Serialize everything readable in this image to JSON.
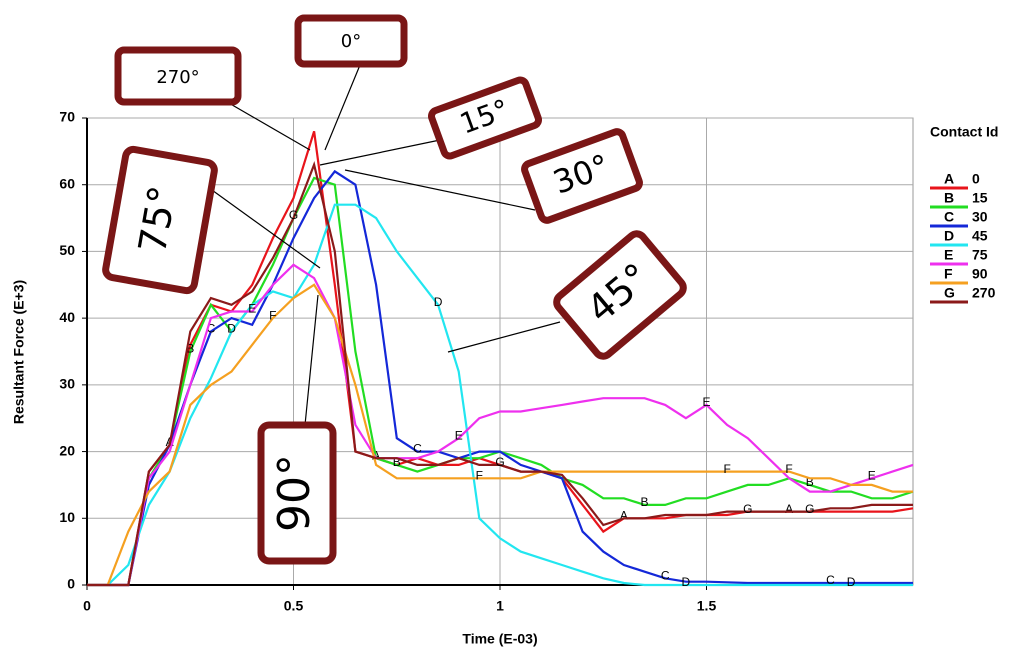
{
  "chart_data": {
    "type": "line",
    "xlabel": "Time (E-03)",
    "ylabel": "Resultant Force (E+3)",
    "legend_title": "Contact Id",
    "xlim": [
      0,
      2
    ],
    "ylim": [
      0,
      70
    ],
    "xticks": [
      0,
      0.5,
      1,
      1.5
    ],
    "yticks": [
      0,
      10,
      20,
      30,
      40,
      50,
      60,
      70
    ],
    "grid": true,
    "x": [
      0,
      0.05,
      0.1,
      0.15,
      0.2,
      0.25,
      0.3,
      0.35,
      0.4,
      0.45,
      0.5,
      0.55,
      0.6,
      0.65,
      0.7,
      0.75,
      0.8,
      0.85,
      0.9,
      0.95,
      1.0,
      1.05,
      1.1,
      1.15,
      1.2,
      1.25,
      1.3,
      1.35,
      1.4,
      1.45,
      1.5,
      1.55,
      1.6,
      1.65,
      1.7,
      1.75,
      1.8,
      1.85,
      1.9,
      1.95,
      2.0
    ],
    "series": [
      {
        "name": "0",
        "letter": "A",
        "color": "#e8141b",
        "values": [
          0,
          0,
          0,
          17,
          21,
          36,
          42,
          41,
          45,
          52,
          58,
          68,
          45,
          20,
          19,
          18,
          19,
          18,
          18,
          19,
          18,
          17,
          17,
          16,
          12,
          8,
          10,
          10,
          10,
          10.5,
          10.5,
          10.5,
          11,
          11,
          11,
          11,
          11,
          11,
          11,
          11,
          11.5
        ]
      },
      {
        "name": "15",
        "letter": "B",
        "color": "#22dd22",
        "values": [
          0,
          0,
          0,
          16,
          21,
          35,
          42,
          38,
          42,
          48,
          55,
          61,
          60,
          35,
          19,
          18,
          17,
          18,
          19,
          19,
          20,
          19,
          18,
          16,
          15,
          13,
          13,
          12,
          12,
          13,
          13,
          14,
          15,
          15,
          16,
          15,
          14,
          14,
          13,
          13,
          14
        ]
      },
      {
        "name": "30",
        "letter": "C",
        "color": "#1428d8",
        "values": [
          0,
          0,
          0,
          15,
          21,
          30,
          38,
          40,
          39,
          45,
          52,
          58,
          62,
          60,
          45,
          22,
          20,
          20,
          19,
          20,
          20,
          18,
          17,
          16,
          8,
          5,
          3,
          2,
          1,
          0.5,
          0.5,
          0.4,
          0.3,
          0.3,
          0.3,
          0.3,
          0.3,
          0.3,
          0.3,
          0.3,
          0.3
        ]
      },
      {
        "name": "45",
        "letter": "D",
        "color": "#22e6f0",
        "values": [
          0,
          0,
          3,
          12,
          17,
          25,
          31,
          38,
          42,
          44,
          43,
          48,
          57,
          57,
          55,
          50,
          46,
          42,
          32,
          10,
          7,
          5,
          4,
          3,
          2,
          1,
          0.3,
          0,
          0,
          0,
          0,
          0,
          0,
          0,
          0,
          0,
          0,
          0,
          0,
          0,
          0
        ]
      },
      {
        "name": "75",
        "letter": "E",
        "color": "#ee30ee",
        "values": [
          0,
          0,
          0,
          16,
          20,
          30,
          40,
          41,
          41,
          45,
          48,
          46,
          40,
          24,
          19,
          19,
          19,
          20,
          22,
          25,
          26,
          26,
          26.5,
          27,
          27.5,
          28,
          28,
          28,
          27,
          25,
          27,
          24,
          22,
          19,
          16,
          14,
          14,
          15,
          16,
          17,
          18
        ]
      },
      {
        "name": "90",
        "letter": "F",
        "color": "#f5a020",
        "values": [
          0,
          0,
          8,
          14,
          17,
          27,
          30,
          32,
          36,
          40,
          43,
          45,
          40,
          30,
          18,
          16,
          16,
          16,
          16,
          16,
          16,
          16,
          17,
          17,
          17,
          17,
          17,
          17,
          17,
          17,
          17,
          17,
          17,
          17,
          17,
          16,
          16,
          15,
          15,
          14,
          14
        ]
      },
      {
        "name": "270",
        "letter": "G",
        "color": "#8b1a1a",
        "values": [
          0,
          0,
          0,
          17,
          21,
          38,
          43,
          42,
          44,
          49,
          55,
          63,
          50,
          20,
          19,
          19,
          18,
          18,
          19,
          18,
          18,
          17,
          17,
          16.5,
          13,
          9,
          10,
          10,
          10.5,
          10.5,
          10.5,
          11,
          11,
          11,
          11,
          11,
          11.5,
          11.5,
          12,
          12,
          12
        ]
      }
    ],
    "annotations": [
      "0°",
      "270°",
      "15°",
      "30°",
      "75°",
      "45°",
      "90°"
    ]
  }
}
